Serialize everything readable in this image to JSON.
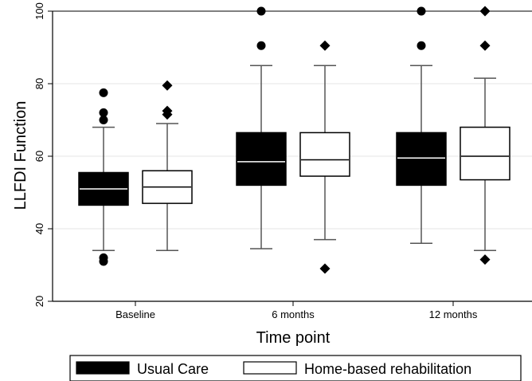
{
  "chart_data": {
    "type": "box",
    "xlabel": "Time point",
    "ylabel": "LLFDI Function",
    "ylim": [
      20,
      100
    ],
    "yticks": [
      20,
      40,
      60,
      80,
      100
    ],
    "grid": true,
    "legend_position": "bottom",
    "categories": [
      "Baseline",
      "6 months",
      "12 months"
    ],
    "series": [
      {
        "name": "Usual Care",
        "fill": "#000000",
        "median_color": "#ffffff",
        "outlier_marker": "circle",
        "boxes": [
          {
            "whisker_low": 34,
            "q1": 46.5,
            "median": 51,
            "q3": 55.5,
            "whisker_high": 68,
            "outliers": [
              31,
              32,
              70,
              72,
              77.5
            ]
          },
          {
            "whisker_low": 34.5,
            "q1": 52,
            "median": 58.5,
            "q3": 66.5,
            "whisker_high": 85,
            "outliers": [
              90.5,
              100
            ]
          },
          {
            "whisker_low": 36,
            "q1": 52,
            "median": 59.5,
            "q3": 66.5,
            "whisker_high": 85,
            "outliers": [
              90.5,
              100
            ]
          }
        ]
      },
      {
        "name": "Home-based rehabilitation",
        "fill": "#ffffff",
        "median_color": "#000000",
        "outlier_marker": "diamond",
        "boxes": [
          {
            "whisker_low": 34,
            "q1": 47,
            "median": 51.5,
            "q3": 56,
            "whisker_high": 69,
            "outliers": [
              71.5,
              72.5,
              79.5
            ]
          },
          {
            "whisker_low": 37,
            "q1": 54.5,
            "median": 59,
            "q3": 66.5,
            "whisker_high": 85,
            "outliers": [
              29,
              90.5
            ]
          },
          {
            "whisker_low": 34,
            "q1": 53.5,
            "median": 60,
            "q3": 68,
            "whisker_high": 81.5,
            "outliers": [
              31.5,
              90.5,
              100
            ]
          }
        ]
      }
    ]
  }
}
